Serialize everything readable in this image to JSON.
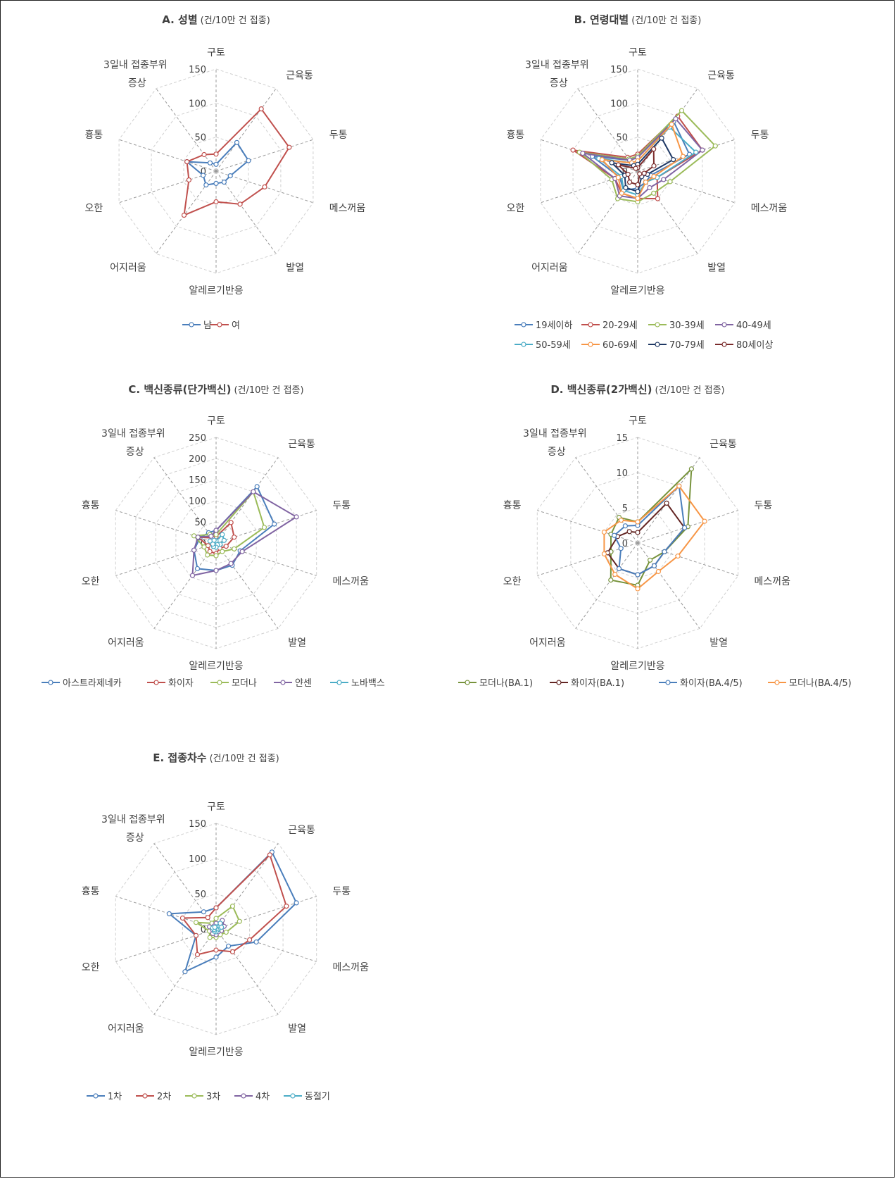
{
  "chart_data": [
    {
      "type": "radar",
      "title": "A. 성별",
      "subtitle": "(건/10만 건 접종)",
      "categories": [
        "구토",
        "근육통",
        "두통",
        "메스꺼움",
        "발열",
        "알레르기반응",
        "어지러움",
        "오한",
        "흉통",
        "3일내 접종부위 증상"
      ],
      "range": [
        0,
        150
      ],
      "ticks": [
        "0",
        "50",
        "100",
        "150"
      ],
      "legend_position": "bottom",
      "series": [
        {
          "name": "남",
          "color": "#4a7ebb",
          "values": [
            10,
            52,
            50,
            22,
            20,
            18,
            25,
            20,
            45,
            15
          ]
        },
        {
          "name": "여",
          "color": "#c0504d",
          "values": [
            25,
            113,
            113,
            75,
            60,
            45,
            80,
            42,
            45,
            30
          ]
        }
      ]
    },
    {
      "type": "radar",
      "title": "B. 연령대별",
      "subtitle": "(건/10만 건 접종)",
      "categories": [
        "구토",
        "근육통",
        "두통",
        "메스꺼움",
        "발열",
        "알레르기반응",
        "어지러움",
        "오한",
        "흉통",
        "3일내 접종부위 증상"
      ],
      "range": [
        0,
        150
      ],
      "ticks": [
        "0",
        "50",
        "100",
        "150"
      ],
      "legend_position": "bottom",
      "series": [
        {
          "name": "19세이하",
          "color": "#4a7ebb",
          "values": [
            20,
            90,
            80,
            20,
            20,
            25,
            35,
            28,
            70,
            20
          ]
        },
        {
          "name": "20-29세",
          "color": "#c0504d",
          "values": [
            25,
            100,
            100,
            30,
            50,
            40,
            40,
            35,
            100,
            25
          ]
        },
        {
          "name": "30-39세",
          "color": "#9bbb59",
          "values": [
            22,
            110,
            120,
            50,
            40,
            45,
            50,
            40,
            90,
            22
          ]
        },
        {
          "name": "40-49세",
          "color": "#8064a2",
          "values": [
            20,
            95,
            100,
            40,
            30,
            40,
            45,
            35,
            85,
            20
          ]
        },
        {
          "name": "50-59세",
          "color": "#4bacc6",
          "values": [
            15,
            80,
            90,
            30,
            20,
            35,
            35,
            25,
            60,
            15
          ]
        },
        {
          "name": "60-69세",
          "color": "#f79646",
          "values": [
            15,
            85,
            70,
            25,
            20,
            40,
            40,
            30,
            55,
            15
          ]
        },
        {
          "name": "70-79세",
          "color": "#1f3864",
          "values": [
            10,
            60,
            55,
            15,
            10,
            30,
            30,
            20,
            40,
            10
          ]
        },
        {
          "name": "80세이상",
          "color": "#7b2c2c",
          "values": [
            5,
            40,
            25,
            10,
            5,
            20,
            20,
            15,
            30,
            5
          ]
        }
      ]
    },
    {
      "type": "radar",
      "title": "C. 백신종류(단가백신)",
      "subtitle": "(건/10만 건 접종)",
      "categories": [
        "구토",
        "근육통",
        "두통",
        "메스꺼움",
        "발열",
        "알레르기반응",
        "어지러움",
        "오한",
        "흉통",
        "3일내 접종부위 증상"
      ],
      "range": [
        0,
        250
      ],
      "ticks": [
        "0",
        "50",
        "100",
        "150",
        "200",
        "250"
      ],
      "legend_position": "bottom",
      "series": [
        {
          "name": "아스트라제네카",
          "color": "#4a7ebb",
          "values": [
            30,
            165,
            145,
            60,
            65,
            65,
            75,
            55,
            40,
            30
          ]
        },
        {
          "name": "화이자",
          "color": "#c0504d",
          "values": [
            15,
            60,
            45,
            25,
            15,
            25,
            25,
            20,
            45,
            15
          ]
        },
        {
          "name": "모더나",
          "color": "#9bbb59",
          "values": [
            20,
            150,
            120,
            45,
            25,
            30,
            35,
            30,
            55,
            25
          ]
        },
        {
          "name": "얀센",
          "color": "#8064a2",
          "values": [
            30,
            150,
            200,
            65,
            60,
            65,
            95,
            55,
            45,
            20
          ]
        },
        {
          "name": "노바백스",
          "color": "#4bacc6",
          "values": [
            5,
            25,
            20,
            10,
            5,
            10,
            10,
            8,
            15,
            8
          ]
        }
      ]
    },
    {
      "type": "radar",
      "title": "D. 백신종류(2가백신)",
      "subtitle": "(건/10만 건 접종)",
      "categories": [
        "구토",
        "근육통",
        "두통",
        "메스꺼움",
        "발열",
        "알레르기반응",
        "어지러움",
        "오한",
        "흉통",
        "3일내 접종부위 증상"
      ],
      "range": [
        0,
        15
      ],
      "ticks": [
        "0",
        "5",
        "10",
        "15"
      ],
      "legend_position": "bottom",
      "series": [
        {
          "name": "모더나(BA.1)",
          "color": "#77933c",
          "values": [
            3,
            13,
            7.5,
            4,
            3,
            6,
            6.5,
            4,
            4,
            4.5
          ]
        },
        {
          "name": "화이자(BA.1)",
          "color": "#632523",
          "values": [
            1.5,
            7,
            7,
            4,
            4,
            4.5,
            4.5,
            4.5,
            3,
            2
          ]
        },
        {
          "name": "화이자(BA.4/5)",
          "color": "#4a7ebb",
          "values": [
            2.5,
            10,
            7,
            4,
            4,
            4.5,
            4.5,
            2.5,
            3.5,
            3
          ]
        },
        {
          "name": "모더나(BA.4/5)",
          "color": "#f79646",
          "values": [
            3,
            10,
            10,
            6,
            5,
            6.5,
            5.5,
            5,
            5,
            4
          ]
        }
      ]
    },
    {
      "type": "radar",
      "title": "E. 접종차수",
      "subtitle": "(건/10만 건 접종)",
      "categories": [
        "구토",
        "근육통",
        "두통",
        "메스꺼움",
        "발열",
        "알레르기반응",
        "어지러움",
        "오한",
        "흉통",
        "3일내 접종부위 증상"
      ],
      "range": [
        0,
        150
      ],
      "ticks": [
        "0",
        "50",
        "100",
        "150"
      ],
      "legend_position": "bottom",
      "series": [
        {
          "name": "1차",
          "color": "#4a7ebb",
          "values": [
            30,
            135,
            120,
            60,
            30,
            40,
            75,
            30,
            70,
            30
          ]
        },
        {
          "name": "2차",
          "color": "#c0504d",
          "values": [
            30,
            130,
            105,
            50,
            40,
            30,
            45,
            30,
            50,
            20
          ]
        },
        {
          "name": "3차",
          "color": "#9bbb59",
          "values": [
            15,
            40,
            35,
            15,
            10,
            12,
            15,
            10,
            30,
            10
          ]
        },
        {
          "name": "4차",
          "color": "#8064a2",
          "values": [
            8,
            15,
            12,
            8,
            5,
            8,
            8,
            5,
            10,
            5
          ]
        },
        {
          "name": "동절기",
          "color": "#4bacc6",
          "values": [
            3,
            10,
            8,
            3,
            2,
            4,
            4,
            3,
            5,
            3
          ]
        }
      ]
    }
  ]
}
